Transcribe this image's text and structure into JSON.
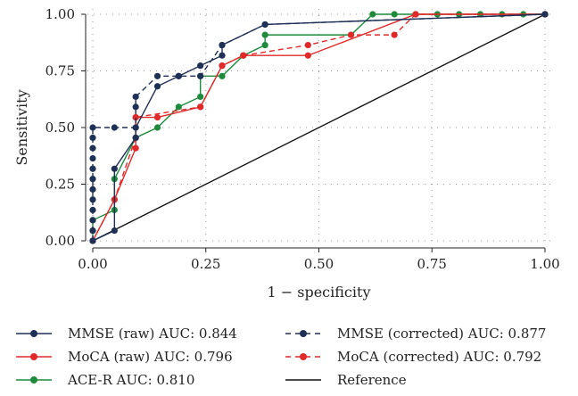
{
  "chart_data": {
    "type": "line",
    "xlabel": "1 − specificity",
    "ylabel": "Sensitivity",
    "xlim": [
      0,
      1
    ],
    "ylim": [
      0,
      1
    ],
    "x_ticks": [
      "0.00",
      "0.25",
      "0.50",
      "0.75",
      "1.00"
    ],
    "y_ticks": [
      "0.00",
      "0.25",
      "0.50",
      "0.75",
      "1.00"
    ],
    "grid": "dotted",
    "legend_position": "bottom",
    "series": [
      {
        "name": "MMSE (raw) AUC: 0.844",
        "color": "#1f3057",
        "dash": "solid",
        "points": [
          [
            0,
            0
          ],
          [
            0.048,
            0.045
          ],
          [
            0.048,
            0.318
          ],
          [
            0.095,
            0.455
          ],
          [
            0.095,
            0.5
          ],
          [
            0.143,
            0.682
          ],
          [
            0.19,
            0.727
          ],
          [
            0.238,
            0.773
          ],
          [
            0.286,
            0.818
          ],
          [
            0.286,
            0.864
          ],
          [
            0.381,
            0.955
          ],
          [
            1,
            1
          ]
        ]
      },
      {
        "name": "MMSE (corrected) AUC: 0.877",
        "color": "#1f3057",
        "dash": "dashed",
        "points": [
          [
            0,
            0
          ],
          [
            0,
            0.045
          ],
          [
            0,
            0.091
          ],
          [
            0,
            0.136
          ],
          [
            0,
            0.182
          ],
          [
            0,
            0.227
          ],
          [
            0,
            0.273
          ],
          [
            0,
            0.318
          ],
          [
            0,
            0.364
          ],
          [
            0,
            0.409
          ],
          [
            0,
            0.455
          ],
          [
            0,
            0.5
          ],
          [
            0.048,
            0.5
          ],
          [
            0.095,
            0.5
          ],
          [
            0.095,
            0.591
          ],
          [
            0.095,
            0.636
          ],
          [
            0.143,
            0.727
          ],
          [
            0.19,
            0.727
          ],
          [
            0.238,
            0.727
          ],
          [
            0.286,
            0.864
          ],
          [
            0.381,
            0.955
          ],
          [
            1,
            1
          ]
        ]
      },
      {
        "name": "MoCA (raw) AUC: 0.796",
        "color": "#e02a2a",
        "dash": "solid",
        "points": [
          [
            0,
            0
          ],
          [
            0.048,
            0.182
          ],
          [
            0.095,
            0.409
          ],
          [
            0.095,
            0.545
          ],
          [
            0.143,
            0.545
          ],
          [
            0.238,
            0.591
          ],
          [
            0.286,
            0.773
          ],
          [
            0.333,
            0.818
          ],
          [
            0.476,
            0.818
          ],
          [
            0.714,
            1
          ],
          [
            1,
            1
          ]
        ]
      },
      {
        "name": "MoCA (corrected) AUC: 0.792",
        "color": "#e02a2a",
        "dash": "dashed",
        "points": [
          [
            0,
            0
          ],
          [
            0.048,
            0.182
          ],
          [
            0.095,
            0.455
          ],
          [
            0.095,
            0.545
          ],
          [
            0.238,
            0.591
          ],
          [
            0.286,
            0.773
          ],
          [
            0.333,
            0.818
          ],
          [
            0.476,
            0.864
          ],
          [
            0.571,
            0.909
          ],
          [
            0.667,
            0.909
          ],
          [
            0.714,
            1
          ],
          [
            1,
            1
          ]
        ]
      },
      {
        "name": "ACE-R AUC: 0.810",
        "color": "#1e8a3c",
        "dash": "solid",
        "points": [
          [
            0,
            0
          ],
          [
            0,
            0.045
          ],
          [
            0,
            0.091
          ],
          [
            0.048,
            0.136
          ],
          [
            0.048,
            0.273
          ],
          [
            0.095,
            0.455
          ],
          [
            0.143,
            0.5
          ],
          [
            0.19,
            0.591
          ],
          [
            0.238,
            0.636
          ],
          [
            0.238,
            0.727
          ],
          [
            0.286,
            0.727
          ],
          [
            0.333,
            0.818
          ],
          [
            0.381,
            0.864
          ],
          [
            0.381,
            0.909
          ],
          [
            0.571,
            0.909
          ],
          [
            0.619,
            1
          ],
          [
            0.667,
            1
          ],
          [
            0.714,
            1
          ],
          [
            0.762,
            1
          ],
          [
            0.81,
            1
          ],
          [
            0.857,
            1
          ],
          [
            0.905,
            1
          ],
          [
            0.952,
            1
          ],
          [
            1,
            1
          ]
        ]
      },
      {
        "name": "Reference",
        "color": "#111111",
        "dash": "solid",
        "markers": false,
        "points": [
          [
            0,
            0
          ],
          [
            1,
            1
          ]
        ]
      }
    ]
  }
}
